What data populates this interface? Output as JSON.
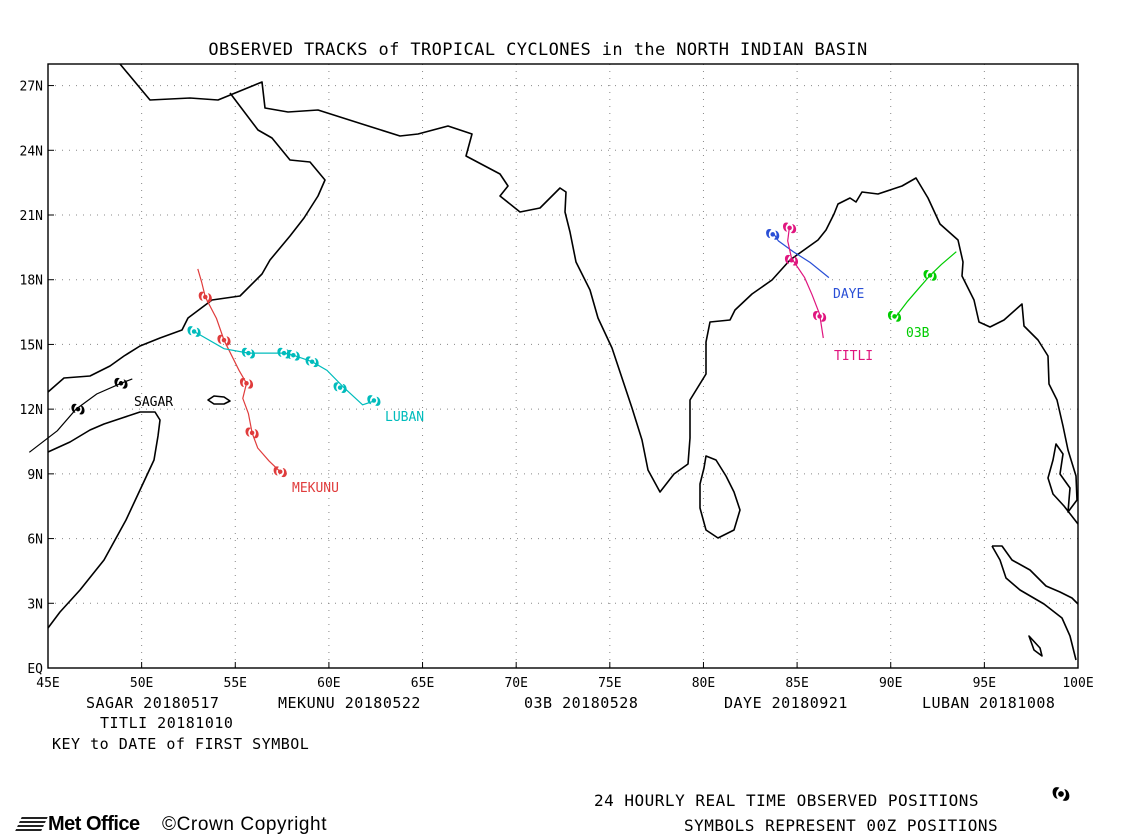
{
  "title": "OBSERVED TRACKS of TROPICAL CYCLONES in the NORTH INDIAN BASIN",
  "lat_ticks": [
    "EQ",
    "3N",
    "6N",
    "9N",
    "12N",
    "15N",
    "18N",
    "21N",
    "24N",
    "27N"
  ],
  "lon_ticks": [
    "45E",
    "50E",
    "55E",
    "60E",
    "65E",
    "70E",
    "75E",
    "80E",
    "85E",
    "90E",
    "95E",
    "100E"
  ],
  "map_extent": {
    "lon": [
      45,
      100
    ],
    "lat": [
      0,
      28
    ]
  },
  "storms": [
    {
      "name": "SAGAR",
      "color": "#000000",
      "track": [
        [
          44,
          10
        ],
        [
          45.5,
          11
        ],
        [
          46.5,
          12
        ],
        [
          47.6,
          12.7
        ],
        [
          48.9,
          13.2
        ],
        [
          49.5,
          13.4
        ]
      ],
      "symbols": [
        [
          46.6,
          12.0
        ],
        [
          48.9,
          13.2
        ]
      ]
    },
    {
      "name": "MEKUNU",
      "color": "#e03c3c",
      "track": [
        [
          57.4,
          9.1
        ],
        [
          56.8,
          9.6
        ],
        [
          56.2,
          10.2
        ],
        [
          55.9,
          10.9
        ],
        [
          55.7,
          11.8
        ],
        [
          55.4,
          12.5
        ],
        [
          55.6,
          13.2
        ],
        [
          55.2,
          13.8
        ],
        [
          54.4,
          15.2
        ],
        [
          54.0,
          16.2
        ],
        [
          53.4,
          17.2
        ],
        [
          53.2,
          17.9
        ],
        [
          53.0,
          18.5
        ]
      ],
      "symbols": [
        [
          57.4,
          9.1
        ],
        [
          55.9,
          10.9
        ],
        [
          55.6,
          13.2
        ],
        [
          54.4,
          15.2
        ],
        [
          53.4,
          17.2
        ]
      ]
    },
    {
      "name": "LUBAN",
      "color": "#00bcbc",
      "track": [
        [
          62.5,
          12.4
        ],
        [
          61.8,
          12.2
        ],
        [
          60.8,
          13.0
        ],
        [
          59.9,
          13.8
        ],
        [
          59.1,
          14.2
        ],
        [
          58.1,
          14.5
        ],
        [
          57.6,
          14.6
        ],
        [
          55.7,
          14.6
        ],
        [
          54.4,
          14.8
        ],
        [
          52.8,
          15.6
        ]
      ],
      "symbols": [
        [
          62.4,
          12.4
        ],
        [
          60.6,
          13.0
        ],
        [
          59.1,
          14.2
        ],
        [
          58.1,
          14.5
        ],
        [
          57.6,
          14.6
        ],
        [
          55.7,
          14.6
        ],
        [
          52.8,
          15.6
        ]
      ]
    },
    {
      "name": "03B",
      "color": "#00cc00",
      "track": [
        [
          90.2,
          16.2
        ],
        [
          90.9,
          17.0
        ],
        [
          91.5,
          17.6
        ],
        [
          92.1,
          18.2
        ],
        [
          92.7,
          18.7
        ],
        [
          93.5,
          19.3
        ]
      ],
      "symbols": [
        [
          90.2,
          16.3
        ],
        [
          92.1,
          18.2
        ]
      ]
    },
    {
      "name": "DAYE",
      "color": "#2a4fd6",
      "track": [
        [
          86.7,
          18.1
        ],
        [
          85.7,
          18.8
        ],
        [
          84.8,
          19.3
        ],
        [
          84.0,
          19.8
        ],
        [
          83.7,
          20.2
        ]
      ],
      "symbols": [
        [
          83.7,
          20.1
        ]
      ]
    },
    {
      "name": "TITLI",
      "color": "#e0157f",
      "track": [
        [
          84.6,
          20.5
        ],
        [
          84.5,
          19.8
        ],
        [
          84.7,
          19.0
        ],
        [
          85.4,
          18.1
        ],
        [
          85.8,
          17.3
        ],
        [
          86.2,
          16.4
        ],
        [
          86.4,
          15.3
        ]
      ],
      "symbols": [
        [
          84.6,
          20.4
        ],
        [
          84.7,
          18.9
        ],
        [
          86.2,
          16.3
        ]
      ]
    }
  ],
  "keys": {
    "sagar": "SAGAR 20180517",
    "mekunu": "MEKUNU 20180522",
    "b03": "03B 20180528",
    "daye": "DAYE 20180921",
    "luban": "LUBAN 20181008",
    "titli": "TITLI 20181010",
    "key_note": "KEY to DATE of FIRST SYMBOL"
  },
  "footer": {
    "line1": "24 HOURLY REAL TIME OBSERVED POSITIONS",
    "line2": "SYMBOLS REPRESENT 00Z POSITIONS",
    "logo": "Met Office",
    "copyright": "©Crown Copyright"
  },
  "colors": {
    "frame": "#000000",
    "grid": "#888888"
  }
}
